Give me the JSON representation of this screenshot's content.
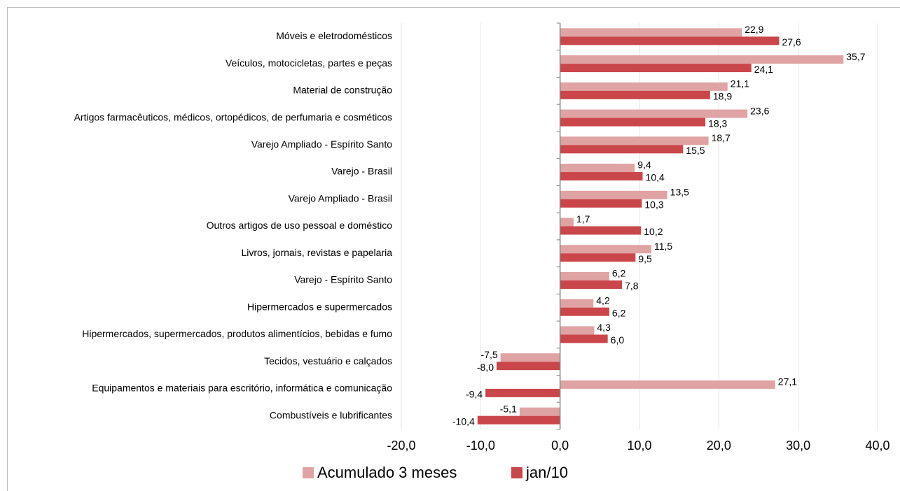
{
  "chart_data": {
    "type": "bar",
    "orientation": "horizontal",
    "categories": [
      "Móveis e eletrodomésticos",
      "Veículos, motocicletas, partes e peças",
      "Material de construção",
      "Artigos farmacêuticos, médicos, ortopédicos, de perfumaria e cosméticos",
      "Varejo Ampliado - Espírito Santo",
      "Varejo - Brasil",
      "Varejo Ampliado - Brasil",
      "Outros artigos de uso pessoal e doméstico",
      "Livros, jornais, revistas e papelaria",
      "Varejo - Espírito Santo",
      "Hipermercados e supermercados",
      "Hipermercados, supermercados, produtos alimentícios, bebidas e fumo",
      "Tecidos, vestuário e calçados",
      "Equipamentos e materiais para escritório, informática e comunicação",
      "Combustíveis e lubrificantes"
    ],
    "series": [
      {
        "name": "Acumulado 3 meses",
        "color": "#e0a3a3",
        "values": [
          22.9,
          35.7,
          21.1,
          23.6,
          18.7,
          9.4,
          13.5,
          1.7,
          11.5,
          6.2,
          4.2,
          4.3,
          -7.5,
          27.1,
          -5.1
        ],
        "value_labels": [
          "22,9",
          "35,7",
          "21,1",
          "23,6",
          "18,7",
          "9,4",
          "13,5",
          "1,7",
          "11,5",
          "6,2",
          "4,2",
          "4,3",
          "-7,5",
          "27,1",
          "-5,1"
        ]
      },
      {
        "name": "jan/10",
        "color": "#c9464a",
        "values": [
          27.6,
          24.1,
          18.9,
          18.3,
          15.5,
          10.4,
          10.3,
          10.2,
          9.5,
          7.8,
          6.2,
          6.0,
          -8.0,
          -9.4,
          -10.4
        ],
        "value_labels": [
          "27,6",
          "24,1",
          "18,9",
          "18,3",
          "15,5",
          "10,4",
          "10,3",
          "10,2",
          "9,5",
          "7,8",
          "6,2",
          "6,0",
          "-8,0",
          "-9,4",
          "-10,4"
        ]
      }
    ],
    "xlim": [
      -20,
      40
    ],
    "xticks": [
      {
        "value": -20,
        "label": "-20,0"
      },
      {
        "value": -10,
        "label": "-10,0"
      },
      {
        "value": 0,
        "label": "0,0"
      },
      {
        "value": 10,
        "label": "10,0"
      },
      {
        "value": 20,
        "label": "20,0"
      },
      {
        "value": 30,
        "label": "30,0"
      },
      {
        "value": 40,
        "label": "40,0"
      }
    ],
    "grid": true,
    "legend": "bottom"
  }
}
